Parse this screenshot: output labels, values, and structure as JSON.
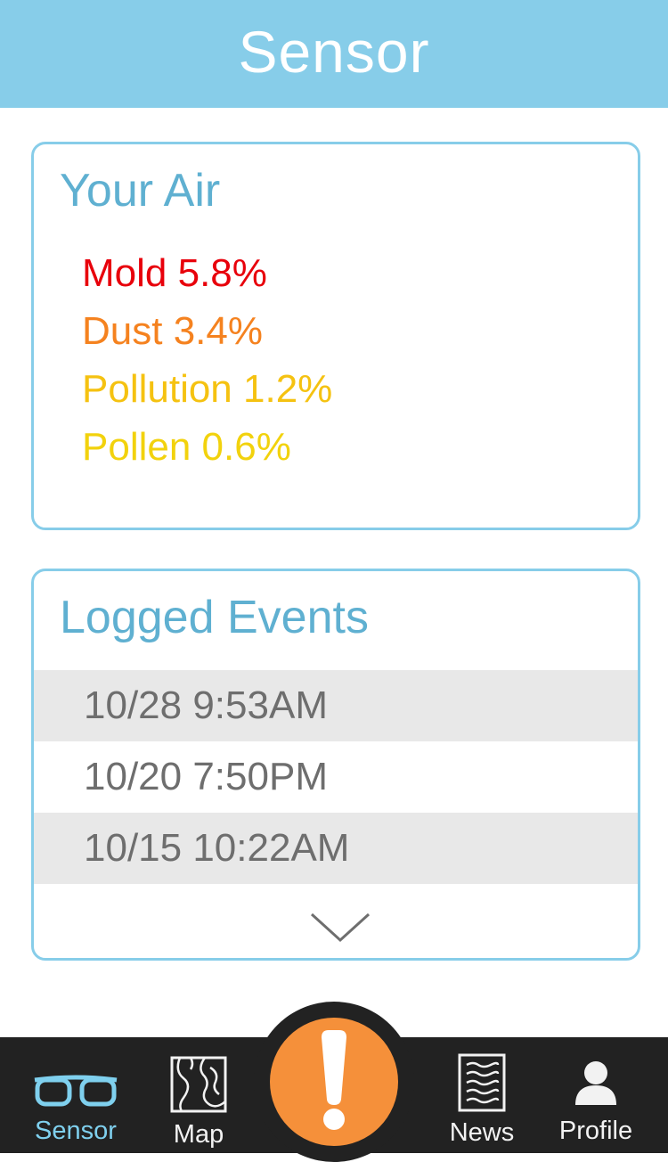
{
  "header": {
    "title": "Sensor"
  },
  "air": {
    "title": "Your Air",
    "items": [
      {
        "label": "Mold 5.8%",
        "color": "#e8000b"
      },
      {
        "label": "Dust 3.4%",
        "color": "#f5821f"
      },
      {
        "label": "Pollution 1.2%",
        "color": "#f5c211"
      },
      {
        "label": "Pollen 0.6%",
        "color": "#f2d20d"
      }
    ]
  },
  "events": {
    "title": "Logged Events",
    "rows": [
      "10/28 9:53AM",
      "10/20 7:50PM",
      "10/15 10:22AM"
    ],
    "more_icon": "chevron-down-icon"
  },
  "tabbar": {
    "tabs": [
      {
        "label": "Sensor",
        "icon": "glasses-icon",
        "active": true
      },
      {
        "label": "Map",
        "icon": "map-icon",
        "active": false
      },
      {
        "label": "News",
        "icon": "newspaper-icon",
        "active": false
      },
      {
        "label": "Profile",
        "icon": "user-icon",
        "active": false
      }
    ],
    "alert_icon": "exclamation-icon"
  },
  "colors": {
    "header_bg": "#87cde9",
    "card_border": "#87cde9",
    "card_title": "#5fb0d1",
    "active_tab": "#7fd0ee",
    "tabbar_bg": "#222222",
    "alert_button": "#f5903a",
    "row_shade": "#e8e8e8"
  }
}
